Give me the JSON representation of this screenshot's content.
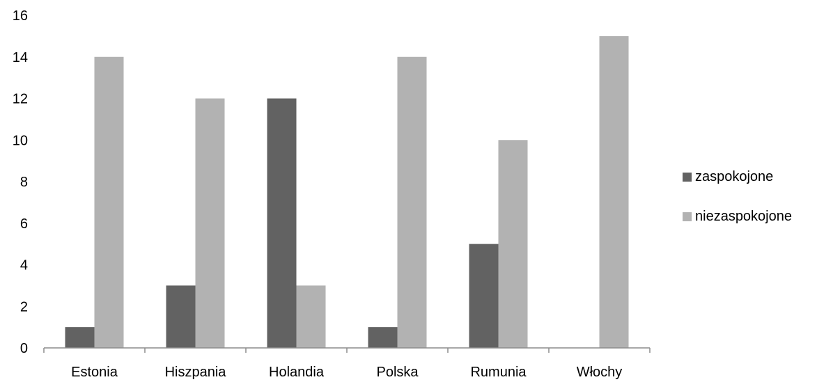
{
  "chart_data": {
    "type": "bar",
    "categories": [
      "Estonia",
      "Hiszpania",
      "Holandia",
      "Polska",
      "Rumunia",
      "Włochy"
    ],
    "series": [
      {
        "name": "zaspokojone",
        "values": [
          1,
          3,
          12,
          1,
          5,
          0
        ],
        "color": "#626262"
      },
      {
        "name": "niezaspokojone",
        "values": [
          14,
          12,
          3,
          14,
          10,
          15
        ],
        "color": "#b2b2b2"
      }
    ],
    "ylim": [
      0,
      16
    ],
    "yticks": [
      "0",
      "2",
      "4",
      "6",
      "8",
      "10",
      "12",
      "14",
      "16"
    ],
    "grid": false,
    "legend": "right"
  }
}
